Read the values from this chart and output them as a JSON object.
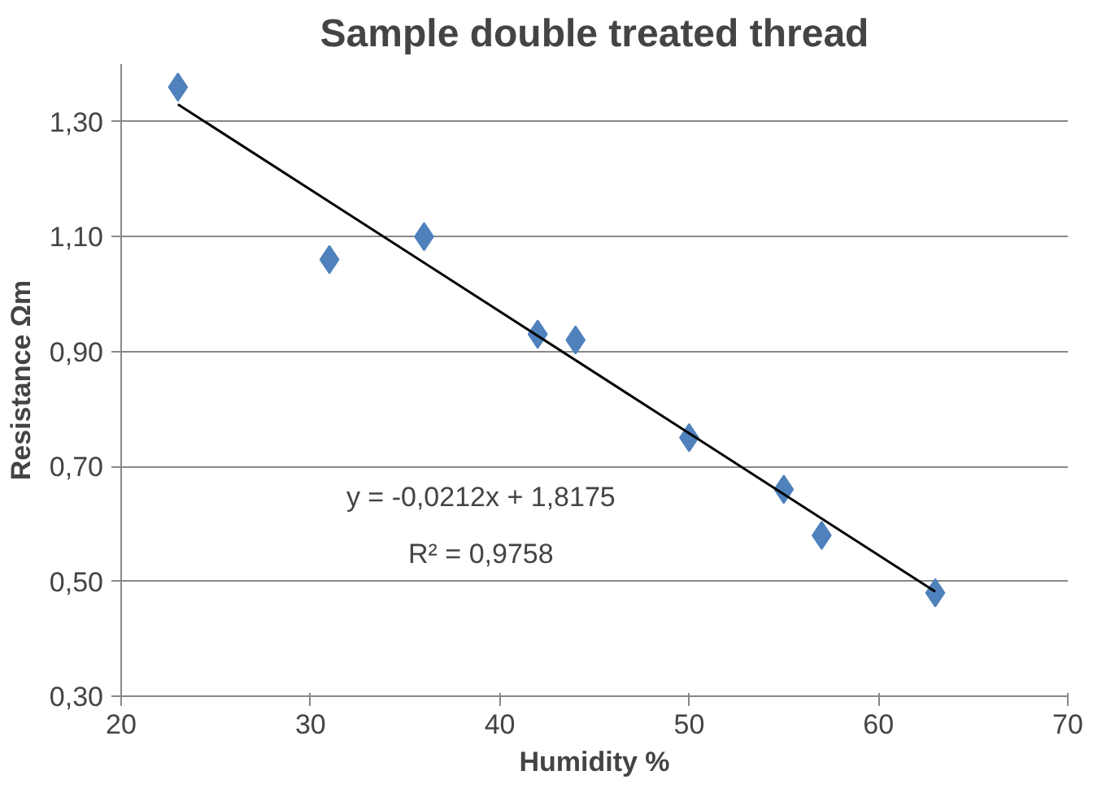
{
  "chart_data": {
    "type": "scatter",
    "title": "Sample double treated thread",
    "xlabel": "Humidity %",
    "ylabel": "Resistance Ωm",
    "x": [
      23,
      31,
      36,
      42,
      44,
      50,
      55,
      57,
      63
    ],
    "series": [
      {
        "color": "#4f81bd",
        "values": [
          1.36,
          1.06,
          1.1,
          0.93,
          0.92,
          0.75,
          0.66,
          0.58,
          0.48
        ],
        "marker": "diamond"
      },
      {
        "type": "line",
        "x": [
          23,
          63
        ],
        "values": [
          1.33,
          0.482
        ],
        "color": "#000000",
        "line_style": "solid"
      }
    ],
    "annotations": [
      "y = -0,0212x + 1,8175",
      "R² = 0,9758"
    ],
    "xlim": [
      20,
      70
    ],
    "xticks": [
      20,
      30,
      40,
      50,
      60,
      70
    ],
    "ylim": [
      0.3,
      1.4
    ],
    "yticks": [
      {
        "value": 0.3,
        "label": "0,30"
      },
      {
        "value": 0.5,
        "label": "0,50"
      },
      {
        "value": 0.7,
        "label": "0,70"
      },
      {
        "value": 0.9,
        "label": "0,90"
      },
      {
        "value": 1.1,
        "label": "1,10"
      },
      {
        "value": 1.3,
        "label": "1,30"
      }
    ],
    "grid": "y"
  }
}
